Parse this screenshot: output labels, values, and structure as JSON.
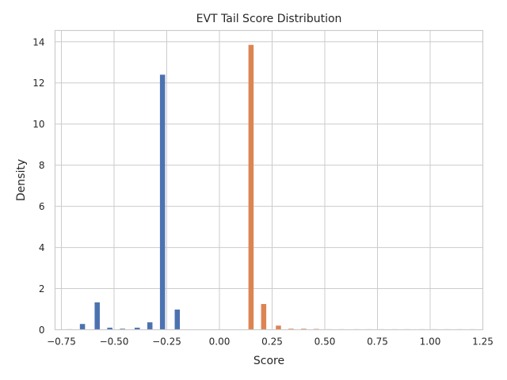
{
  "chart_data": {
    "type": "bar",
    "title": "EVT Tail Score Distribution",
    "xlabel": "Score",
    "ylabel": "Density",
    "xlim": [
      -0.78,
      1.25
    ],
    "ylim": [
      0,
      14.55
    ],
    "grid": true,
    "x_ticks": [
      -0.75,
      -0.5,
      -0.25,
      0.0,
      0.25,
      0.5,
      0.75,
      1.0,
      1.25
    ],
    "x_tick_labels": [
      "−0.75",
      "−0.50",
      "−0.25",
      "0.00",
      "0.25",
      "0.50",
      "0.75",
      "1.00",
      "1.25"
    ],
    "y_ticks": [
      0,
      2,
      4,
      6,
      8,
      10,
      12,
      14
    ],
    "y_tick_labels": [
      "0",
      "2",
      "4",
      "6",
      "8",
      "10",
      "12",
      "14"
    ],
    "series": [
      {
        "color": "#4c72b0",
        "x": [
          -0.71,
          -0.65,
          -0.58,
          -0.52,
          -0.46,
          -0.39,
          -0.33,
          -0.27,
          -0.2
        ],
        "values": [
          0.0,
          0.28,
          1.33,
          0.1,
          0.05,
          0.1,
          0.36,
          12.4,
          0.98
        ]
      },
      {
        "color": "#dd8452",
        "x": [
          0.15,
          0.21,
          0.28,
          0.34,
          0.4,
          0.46,
          0.52,
          0.58,
          0.65,
          0.71,
          0.77,
          0.83,
          0.89,
          0.96,
          1.02,
          1.08,
          1.14,
          1.2
        ],
        "values": [
          13.85,
          1.25,
          0.2,
          0.05,
          0.05,
          0.04,
          0.0,
          0.0,
          0.0,
          0.0,
          0.0,
          0.0,
          0.0,
          0.0,
          0.0,
          0.0,
          0.0,
          0.0
        ]
      }
    ]
  }
}
